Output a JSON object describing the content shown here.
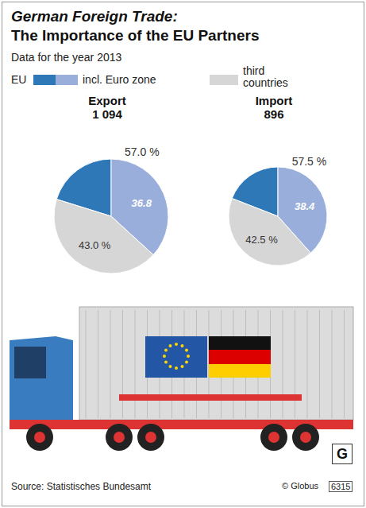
{
  "header": {
    "title": "German Foreign Trade:",
    "subtitle": "The Importance of the EU Partners",
    "note": "Data for the year 2013"
  },
  "chart_data": [
    {
      "type": "pie",
      "title": "Export",
      "subtitle": "1 094",
      "categories": [
        "EU",
        "incl. Euro zone",
        "third countries"
      ],
      "values": [
        20.2,
        36.8,
        43.0
      ],
      "value_labels": [
        null,
        "36.8",
        "43.0 %"
      ],
      "colors": [
        "#2e78b7",
        "#9aaedb",
        "#d6d6d6"
      ],
      "annotations": [
        {
          "value": 57.0,
          "label": "57.0 %"
        }
      ],
      "data_labels": true
    },
    {
      "type": "pie",
      "title": "Import",
      "subtitle": "896",
      "categories": [
        "EU",
        "incl. Euro zone",
        "third countries"
      ],
      "values": [
        19.1,
        38.4,
        42.5
      ],
      "value_labels": [
        null,
        "38.4",
        "42.5 %"
      ],
      "colors": [
        "#2e78b7",
        "#9aaedb",
        "#d6d6d6"
      ],
      "annotations": [
        {
          "value": 57.5,
          "label": "57.5 %"
        }
      ],
      "data_labels": true
    }
  ],
  "footer": {
    "source": "Source: Statistisches Bundesamt",
    "credit": "© Globus",
    "code": "6315",
    "logo": "G"
  }
}
